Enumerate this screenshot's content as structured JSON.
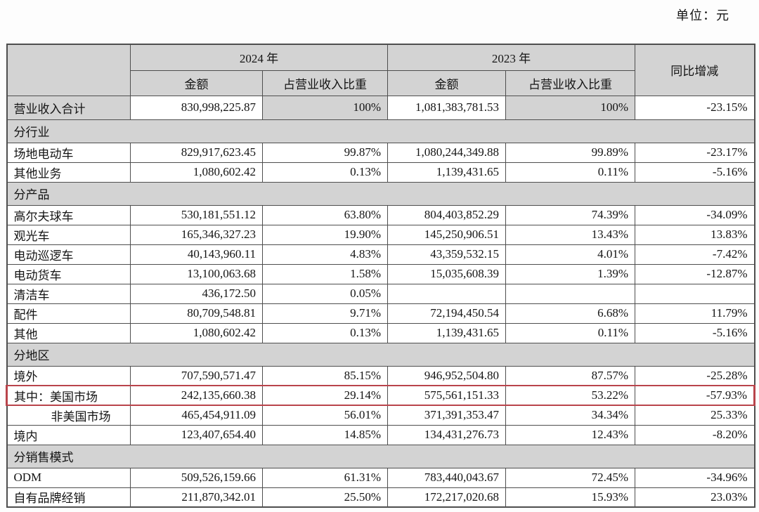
{
  "unit_label": "单位：元",
  "colors": {
    "header_bg": "#d3d3d3",
    "highlight_border": "#b9444b",
    "table_border": "#4e4e4e"
  },
  "table": {
    "header": {
      "year_2024": "2024 年",
      "year_2023": "2023 年",
      "yoy": "同比增减",
      "amount": "金额",
      "share": "占营业收入比重"
    },
    "rows": [
      {
        "type": "total",
        "label": "营业收入合计",
        "cells": [
          "830,998,225.87",
          "100%",
          "1,081,383,781.53",
          "100%",
          "-23.15%"
        ]
      },
      {
        "type": "section",
        "label": "分行业"
      },
      {
        "type": "data",
        "label": "场地电动车",
        "cells": [
          "829,917,623.45",
          "99.87%",
          "1,080,244,349.88",
          "99.89%",
          "-23.17%"
        ]
      },
      {
        "type": "data",
        "label": "其他业务",
        "cells": [
          "1,080,602.42",
          "0.13%",
          "1,139,431.65",
          "0.11%",
          "-5.16%"
        ]
      },
      {
        "type": "section",
        "label": "分产品"
      },
      {
        "type": "data",
        "label": "高尔夫球车",
        "cells": [
          "530,181,551.12",
          "63.80%",
          "804,403,852.29",
          "74.39%",
          "-34.09%"
        ]
      },
      {
        "type": "data",
        "label": "观光车",
        "cells": [
          "165,346,327.23",
          "19.90%",
          "145,250,906.51",
          "13.43%",
          "13.83%"
        ]
      },
      {
        "type": "data",
        "label": "电动巡逻车",
        "cells": [
          "40,143,960.11",
          "4.83%",
          "43,359,532.15",
          "4.01%",
          "-7.42%"
        ]
      },
      {
        "type": "data",
        "label": "电动货车",
        "cells": [
          "13,100,063.68",
          "1.58%",
          "15,035,608.39",
          "1.39%",
          "-12.87%"
        ]
      },
      {
        "type": "data",
        "label": "清洁车",
        "cells": [
          "436,172.50",
          "0.05%",
          "",
          "",
          ""
        ]
      },
      {
        "type": "data",
        "label": "配件",
        "cells": [
          "80,709,548.81",
          "9.71%",
          "72,194,450.54",
          "6.68%",
          "11.79%"
        ]
      },
      {
        "type": "data",
        "label": "其他",
        "cells": [
          "1,080,602.42",
          "0.13%",
          "1,139,431.65",
          "0.11%",
          "-5.16%"
        ]
      },
      {
        "type": "section",
        "label": "分地区"
      },
      {
        "type": "data",
        "label": "境外",
        "cells": [
          "707,590,571.47",
          "85.15%",
          "946,952,504.80",
          "87.57%",
          "-25.28%"
        ]
      },
      {
        "type": "data",
        "label": "其中：美国市场",
        "highlight": true,
        "cells": [
          "242,135,660.38",
          "29.14%",
          "575,561,151.33",
          "53.22%",
          "-57.93%"
        ]
      },
      {
        "type": "data",
        "label": "非美国市场",
        "indent": true,
        "cells": [
          "465,454,911.09",
          "56.01%",
          "371,391,353.47",
          "34.34%",
          "25.33%"
        ]
      },
      {
        "type": "data",
        "label": "境内",
        "cells": [
          "123,407,654.40",
          "14.85%",
          "134,431,276.73",
          "12.43%",
          "-8.20%"
        ]
      },
      {
        "type": "section",
        "label": "分销售模式"
      },
      {
        "type": "data",
        "label": "ODM",
        "cells": [
          "509,526,159.66",
          "61.31%",
          "783,440,043.67",
          "72.45%",
          "-34.96%"
        ]
      },
      {
        "type": "data",
        "label": "自有品牌经销",
        "cells": [
          "211,870,342.01",
          "25.50%",
          "172,217,020.68",
          "15.93%",
          "23.03%"
        ]
      }
    ]
  }
}
